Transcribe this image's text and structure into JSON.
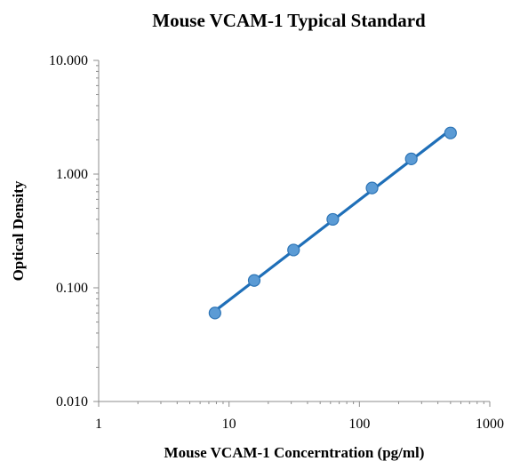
{
  "chart_data": {
    "type": "scatter",
    "title": "Mouse VCAM-1 Typical Standard",
    "xlabel": "Mouse VCAM-1 Concerntration (pg/ml)",
    "ylabel": "Optical Density",
    "x_scale": "log",
    "y_scale": "log",
    "xlim": [
      1,
      1000
    ],
    "ylim": [
      0.01,
      10
    ],
    "x_ticks": [
      "1",
      "10",
      "100",
      "1000"
    ],
    "y_ticks": [
      "0.010",
      "0.100",
      "1.000",
      "10.000"
    ],
    "grid": false,
    "legend": "none",
    "series": [
      {
        "x": [
          7.8,
          15.6,
          31.25,
          62.5,
          125,
          250,
          500
        ],
        "y": [
          0.06,
          0.116,
          0.215,
          0.4,
          0.755,
          1.36,
          2.3
        ],
        "marker_color": "#5b9bd5",
        "marker_edge": "#2e75b6",
        "line_color": "#1f6fb8",
        "trendline": "power"
      }
    ]
  }
}
